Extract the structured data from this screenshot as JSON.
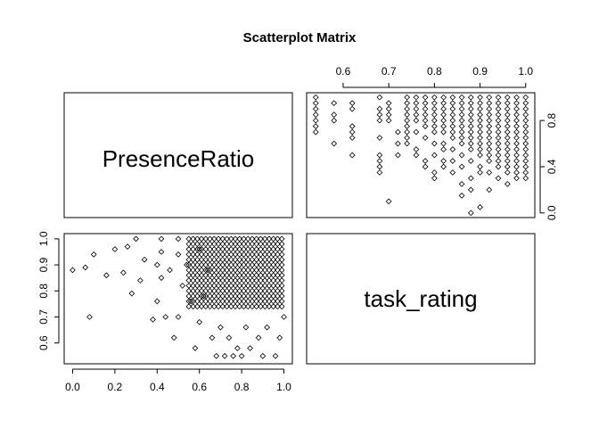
{
  "chart_data": {
    "type": "scatter",
    "title": "Scatterplot Matrix",
    "variables": [
      "PresenceRatio",
      "task_rating"
    ],
    "axes": {
      "PresenceRatio": {
        "top_ticks": [
          "0.6",
          "0.7",
          "0.8",
          "0.9",
          "1.0"
        ],
        "bottom_ticks": [
          "0.0",
          "0.2",
          "0.4",
          "0.6",
          "0.8",
          "1.0"
        ]
      },
      "task_rating": {
        "right_ticks": [
          "0.0",
          "0.4",
          "0.8"
        ],
        "left_ticks": [
          "0.6",
          "0.7",
          "0.8",
          "0.9",
          "1.0"
        ]
      }
    },
    "panels": [
      {
        "position": "top-right",
        "x_var": "PresenceRatio",
        "y_var": "task_rating",
        "xlim": [
          0.52,
          1.02
        ],
        "ylim": [
          -0.04,
          1.04
        ],
        "points": [
          [
            0.54,
            1.0
          ],
          [
            0.54,
            0.95
          ],
          [
            0.54,
            0.9
          ],
          [
            0.54,
            0.85
          ],
          [
            0.54,
            0.8
          ],
          [
            0.54,
            0.75
          ],
          [
            0.54,
            0.7
          ],
          [
            0.58,
            0.95
          ],
          [
            0.58,
            0.85
          ],
          [
            0.58,
            0.8
          ],
          [
            0.58,
            0.6
          ],
          [
            0.62,
            0.95
          ],
          [
            0.62,
            0.9
          ],
          [
            0.62,
            0.75
          ],
          [
            0.62,
            0.7
          ],
          [
            0.62,
            0.65
          ],
          [
            0.62,
            0.5
          ],
          [
            0.68,
            1.0
          ],
          [
            0.68,
            0.9
          ],
          [
            0.68,
            0.85
          ],
          [
            0.68,
            0.8
          ],
          [
            0.68,
            0.65
          ],
          [
            0.68,
            0.5
          ],
          [
            0.68,
            0.45
          ],
          [
            0.68,
            0.4
          ],
          [
            0.68,
            0.35
          ],
          [
            0.7,
            0.1
          ],
          [
            0.7,
            0.95
          ],
          [
            0.7,
            0.9
          ],
          [
            0.7,
            0.85
          ],
          [
            0.7,
            0.8
          ],
          [
            0.72,
            0.7
          ],
          [
            0.72,
            0.6
          ],
          [
            0.72,
            0.5
          ],
          [
            0.74,
            1.0
          ],
          [
            0.74,
            0.95
          ],
          [
            0.74,
            0.9
          ],
          [
            0.74,
            0.85
          ],
          [
            0.74,
            0.8
          ],
          [
            0.74,
            0.75
          ],
          [
            0.74,
            0.7
          ],
          [
            0.74,
            0.65
          ],
          [
            0.74,
            0.6
          ],
          [
            0.76,
            1.0
          ],
          [
            0.76,
            0.95
          ],
          [
            0.76,
            0.9
          ],
          [
            0.76,
            0.85
          ],
          [
            0.76,
            0.8
          ],
          [
            0.76,
            0.7
          ],
          [
            0.76,
            0.55
          ],
          [
            0.76,
            0.5
          ],
          [
            0.78,
            1.0
          ],
          [
            0.78,
            0.95
          ],
          [
            0.78,
            0.9
          ],
          [
            0.78,
            0.85
          ],
          [
            0.78,
            0.8
          ],
          [
            0.78,
            0.75
          ],
          [
            0.78,
            0.65
          ],
          [
            0.78,
            0.45
          ],
          [
            0.78,
            0.4
          ],
          [
            0.8,
            1.0
          ],
          [
            0.8,
            0.95
          ],
          [
            0.8,
            0.9
          ],
          [
            0.8,
            0.85
          ],
          [
            0.8,
            0.8
          ],
          [
            0.8,
            0.75
          ],
          [
            0.8,
            0.7
          ],
          [
            0.8,
            0.6
          ],
          [
            0.8,
            0.5
          ],
          [
            0.8,
            0.35
          ],
          [
            0.8,
            0.3
          ],
          [
            0.82,
            1.0
          ],
          [
            0.82,
            0.95
          ],
          [
            0.82,
            0.9
          ],
          [
            0.82,
            0.85
          ],
          [
            0.82,
            0.8
          ],
          [
            0.82,
            0.75
          ],
          [
            0.82,
            0.7
          ],
          [
            0.82,
            0.6
          ],
          [
            0.82,
            0.55
          ],
          [
            0.82,
            0.45
          ],
          [
            0.82,
            0.4
          ],
          [
            0.84,
            1.0
          ],
          [
            0.84,
            0.95
          ],
          [
            0.84,
            0.9
          ],
          [
            0.84,
            0.85
          ],
          [
            0.84,
            0.8
          ],
          [
            0.84,
            0.75
          ],
          [
            0.84,
            0.7
          ],
          [
            0.84,
            0.65
          ],
          [
            0.84,
            0.55
          ],
          [
            0.84,
            0.45
          ],
          [
            0.84,
            0.35
          ],
          [
            0.86,
            1.0
          ],
          [
            0.86,
            0.95
          ],
          [
            0.86,
            0.9
          ],
          [
            0.86,
            0.85
          ],
          [
            0.86,
            0.8
          ],
          [
            0.86,
            0.75
          ],
          [
            0.86,
            0.7
          ],
          [
            0.86,
            0.65
          ],
          [
            0.86,
            0.6
          ],
          [
            0.86,
            0.5
          ],
          [
            0.86,
            0.4
          ],
          [
            0.86,
            0.25
          ],
          [
            0.86,
            0.15
          ],
          [
            0.88,
            1.0
          ],
          [
            0.88,
            0.95
          ],
          [
            0.88,
            0.9
          ],
          [
            0.88,
            0.85
          ],
          [
            0.88,
            0.8
          ],
          [
            0.88,
            0.75
          ],
          [
            0.88,
            0.7
          ],
          [
            0.88,
            0.65
          ],
          [
            0.88,
            0.6
          ],
          [
            0.88,
            0.55
          ],
          [
            0.88,
            0.45
          ],
          [
            0.88,
            0.3
          ],
          [
            0.88,
            0.2
          ],
          [
            0.88,
            0.0
          ],
          [
            0.9,
            1.0
          ],
          [
            0.9,
            0.95
          ],
          [
            0.9,
            0.9
          ],
          [
            0.9,
            0.85
          ],
          [
            0.9,
            0.8
          ],
          [
            0.9,
            0.75
          ],
          [
            0.9,
            0.7
          ],
          [
            0.9,
            0.65
          ],
          [
            0.9,
            0.6
          ],
          [
            0.9,
            0.55
          ],
          [
            0.9,
            0.5
          ],
          [
            0.9,
            0.4
          ],
          [
            0.9,
            0.35
          ],
          [
            0.9,
            0.05
          ],
          [
            0.92,
            1.0
          ],
          [
            0.92,
            0.95
          ],
          [
            0.92,
            0.9
          ],
          [
            0.92,
            0.85
          ],
          [
            0.92,
            0.8
          ],
          [
            0.92,
            0.75
          ],
          [
            0.92,
            0.7
          ],
          [
            0.92,
            0.65
          ],
          [
            0.92,
            0.6
          ],
          [
            0.92,
            0.55
          ],
          [
            0.92,
            0.5
          ],
          [
            0.92,
            0.45
          ],
          [
            0.92,
            0.35
          ],
          [
            0.92,
            0.2
          ],
          [
            0.94,
            1.0
          ],
          [
            0.94,
            0.95
          ],
          [
            0.94,
            0.9
          ],
          [
            0.94,
            0.85
          ],
          [
            0.94,
            0.8
          ],
          [
            0.94,
            0.75
          ],
          [
            0.94,
            0.7
          ],
          [
            0.94,
            0.65
          ],
          [
            0.94,
            0.6
          ],
          [
            0.94,
            0.55
          ],
          [
            0.94,
            0.5
          ],
          [
            0.94,
            0.45
          ],
          [
            0.94,
            0.4
          ],
          [
            0.94,
            0.3
          ],
          [
            0.96,
            1.0
          ],
          [
            0.96,
            0.95
          ],
          [
            0.96,
            0.9
          ],
          [
            0.96,
            0.85
          ],
          [
            0.96,
            0.8
          ],
          [
            0.96,
            0.75
          ],
          [
            0.96,
            0.7
          ],
          [
            0.96,
            0.65
          ],
          [
            0.96,
            0.6
          ],
          [
            0.96,
            0.55
          ],
          [
            0.96,
            0.5
          ],
          [
            0.96,
            0.45
          ],
          [
            0.96,
            0.4
          ],
          [
            0.96,
            0.35
          ],
          [
            0.96,
            0.25
          ],
          [
            0.98,
            1.0
          ],
          [
            0.98,
            0.95
          ],
          [
            0.98,
            0.9
          ],
          [
            0.98,
            0.85
          ],
          [
            0.98,
            0.8
          ],
          [
            0.98,
            0.75
          ],
          [
            0.98,
            0.7
          ],
          [
            0.98,
            0.65
          ],
          [
            0.98,
            0.6
          ],
          [
            0.98,
            0.55
          ],
          [
            0.98,
            0.5
          ],
          [
            0.98,
            0.45
          ],
          [
            0.98,
            0.4
          ],
          [
            0.98,
            0.35
          ],
          [
            0.98,
            0.3
          ],
          [
            1.0,
            1.0
          ],
          [
            1.0,
            0.95
          ],
          [
            1.0,
            0.9
          ],
          [
            1.0,
            0.85
          ],
          [
            1.0,
            0.8
          ],
          [
            1.0,
            0.75
          ],
          [
            1.0,
            0.7
          ],
          [
            1.0,
            0.65
          ],
          [
            1.0,
            0.6
          ],
          [
            1.0,
            0.55
          ],
          [
            1.0,
            0.5
          ],
          [
            1.0,
            0.45
          ],
          [
            1.0,
            0.4
          ],
          [
            1.0,
            0.35
          ],
          [
            1.0,
            0.3
          ]
        ]
      },
      {
        "position": "bottom-left",
        "x_var": "task_rating",
        "y_var": "PresenceRatio",
        "xlim": [
          -0.04,
          1.04
        ],
        "ylim": [
          0.52,
          1.02
        ],
        "points": [
          [
            0.0,
            0.88
          ],
          [
            0.06,
            0.89
          ],
          [
            0.08,
            0.7
          ],
          [
            0.1,
            0.94
          ],
          [
            0.16,
            0.86
          ],
          [
            0.2,
            0.96
          ],
          [
            0.24,
            0.87
          ],
          [
            0.26,
            0.97
          ],
          [
            0.28,
            0.79
          ],
          [
            0.3,
            1.0
          ],
          [
            0.32,
            0.84
          ],
          [
            0.34,
            0.92
          ],
          [
            0.38,
            0.69
          ],
          [
            0.4,
            0.9
          ],
          [
            0.4,
            0.76
          ],
          [
            0.42,
            1.0
          ],
          [
            0.42,
            0.95
          ],
          [
            0.42,
            0.85
          ],
          [
            0.44,
            0.7
          ],
          [
            0.46,
            0.88
          ],
          [
            0.48,
            0.62
          ],
          [
            0.5,
            1.0
          ],
          [
            0.5,
            0.94
          ],
          [
            0.5,
            0.7
          ],
          [
            0.52,
            0.82
          ],
          [
            0.54,
            0.9
          ],
          [
            0.56,
            0.76
          ],
          [
            0.58,
            0.58
          ],
          [
            0.6,
            0.96
          ],
          [
            0.6,
            0.68
          ],
          [
            0.62,
            0.78
          ],
          [
            0.64,
            0.88
          ],
          [
            0.66,
            0.62
          ],
          [
            0.68,
            0.55
          ],
          [
            0.7,
            0.66
          ],
          [
            0.72,
            0.55
          ],
          [
            0.74,
            0.62
          ],
          [
            0.76,
            0.55
          ],
          [
            0.78,
            0.58
          ],
          [
            0.8,
            0.55
          ],
          [
            0.82,
            0.66
          ],
          [
            0.84,
            0.58
          ],
          [
            0.88,
            0.62
          ],
          [
            0.9,
            0.55
          ],
          [
            0.92,
            0.66
          ],
          [
            0.96,
            0.55
          ],
          [
            0.98,
            0.62
          ],
          [
            1.0,
            0.7
          ]
        ],
        "dense_region": {
          "x": [
            0.55,
            1.0
          ],
          "y": [
            0.74,
            1.0
          ]
        }
      }
    ],
    "grid": false,
    "legend": "none"
  }
}
